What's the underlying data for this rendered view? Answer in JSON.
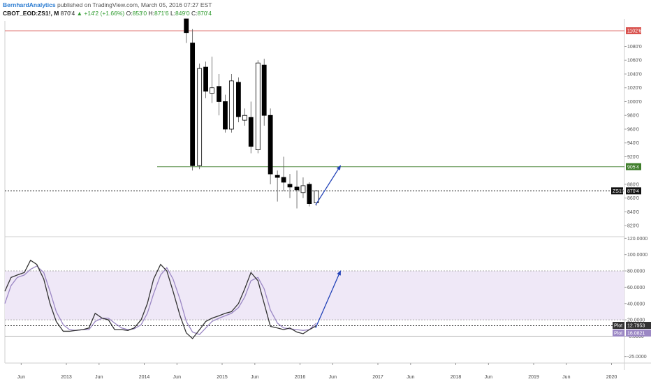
{
  "header": {
    "author": "BernhardAnalytics",
    "published": "published on TradingView.com, March 05, 2016 07:27 EST",
    "symbol": "CBOT_EOD:ZS1!, M",
    "last": "870'4",
    "change": "+14'2 (+1.66%)",
    "open_label": "O:",
    "open": "853'0",
    "high_label": "H:",
    "high": "871'6",
    "low_label": "L:",
    "low": "849'0",
    "close_label": "C:",
    "close": "870'4"
  },
  "chart_data": {
    "type": "candlestick",
    "price_axis": {
      "range": [
        804,
        1120
      ],
      "ticks": [
        "1080'0",
        "1060'0",
        "1040'0",
        "1020'0",
        "1000'0",
        "980'0",
        "960'0",
        "940'0",
        "920'0",
        "880'0",
        "860'0",
        "840'0",
        "820'0"
      ],
      "tick_values": [
        1080,
        1060,
        1040,
        1020,
        1000,
        980,
        960,
        940,
        920,
        880,
        860,
        840,
        820
      ]
    },
    "time_axis": {
      "labels": [
        "Jun",
        "2013",
        "Jun",
        "2014",
        "Jun",
        "2015",
        "Jun",
        "2016",
        "Jun",
        "2017",
        "Jun",
        "2018",
        "Jun",
        "2019",
        "Jun",
        "2020"
      ],
      "label_times": [
        2012.42,
        2013.0,
        2013.42,
        2014.0,
        2014.42,
        2015.0,
        2015.42,
        2016.0,
        2016.42,
        2017.0,
        2017.42,
        2018.0,
        2018.42,
        2019.0,
        2019.42,
        2020.0
      ]
    },
    "candles": [
      {
        "t": 2014.54,
        "o": 1125,
        "h": 1125,
        "l": 1085,
        "c": 1100
      },
      {
        "t": 2014.62,
        "o": 1085,
        "h": 1105,
        "l": 900,
        "c": 907
      },
      {
        "t": 2014.71,
        "o": 907,
        "h": 1055,
        "l": 902,
        "c": 1048
      },
      {
        "t": 2014.79,
        "o": 1050,
        "h": 1058,
        "l": 1005,
        "c": 1015
      },
      {
        "t": 2014.87,
        "o": 1012,
        "h": 1065,
        "l": 998,
        "c": 1020
      },
      {
        "t": 2014.96,
        "o": 1022,
        "h": 1040,
        "l": 980,
        "c": 1000
      },
      {
        "t": 2015.04,
        "o": 1000,
        "h": 1010,
        "l": 955,
        "c": 960
      },
      {
        "t": 2015.12,
        "o": 960,
        "h": 1040,
        "l": 955,
        "c": 1030
      },
      {
        "t": 2015.21,
        "o": 1028,
        "h": 1035,
        "l": 970,
        "c": 978
      },
      {
        "t": 2015.29,
        "o": 973,
        "h": 990,
        "l": 965,
        "c": 980
      },
      {
        "t": 2015.37,
        "o": 977,
        "h": 1000,
        "l": 925,
        "c": 935
      },
      {
        "t": 2015.46,
        "o": 930,
        "h": 1060,
        "l": 925,
        "c": 1056
      },
      {
        "t": 2015.54,
        "o": 1053,
        "h": 1062,
        "l": 965,
        "c": 980
      },
      {
        "t": 2015.62,
        "o": 980,
        "h": 990,
        "l": 880,
        "c": 895
      },
      {
        "t": 2015.71,
        "o": 893,
        "h": 900,
        "l": 855,
        "c": 890
      },
      {
        "t": 2015.79,
        "o": 890,
        "h": 920,
        "l": 870,
        "c": 883
      },
      {
        "t": 2015.87,
        "o": 880,
        "h": 895,
        "l": 860,
        "c": 876
      },
      {
        "t": 2015.96,
        "o": 876,
        "h": 900,
        "l": 845,
        "c": 872
      },
      {
        "t": 2016.04,
        "o": 868,
        "h": 890,
        "l": 860,
        "c": 878
      },
      {
        "t": 2016.12,
        "o": 880,
        "h": 883,
        "l": 848,
        "c": 852
      },
      {
        "t": 2016.21,
        "o": 853,
        "h": 871.75,
        "l": 849,
        "c": 870.5
      }
    ],
    "levels": [
      {
        "price": 1102.75,
        "label": "1102'6",
        "color": "#d9534f"
      },
      {
        "price": 905.5,
        "label": "905'4",
        "color": "#3e7d2a"
      }
    ],
    "last_price": {
      "price": 870.5,
      "symbol": "ZS1!",
      "label": "870'4"
    },
    "projection": {
      "from": {
        "t": 2016.2,
        "price": 850
      },
      "to": {
        "t": 2016.52,
        "price": 907
      }
    },
    "oscillator": {
      "range": [
        -33,
        122
      ],
      "ticks": [
        "120.0000",
        "100.0000",
        "80.0000",
        "60.0000",
        "40.0000",
        "20.0000",
        "-0.0000",
        "-25.0000"
      ],
      "tick_values": [
        120,
        100,
        80,
        60,
        40,
        20,
        0,
        -25
      ],
      "upper_band": 80,
      "lower_band": 20,
      "band_fill": "#efe8f7",
      "x": [
        2012.21,
        2012.29,
        2012.37,
        2012.46,
        2012.54,
        2012.62,
        2012.71,
        2012.79,
        2012.87,
        2012.96,
        2013.04,
        2013.12,
        2013.21,
        2013.29,
        2013.37,
        2013.46,
        2013.54,
        2013.62,
        2013.71,
        2013.79,
        2013.87,
        2013.96,
        2014.04,
        2014.12,
        2014.21,
        2014.29,
        2014.37,
        2014.46,
        2014.54,
        2014.62,
        2014.71,
        2014.79,
        2014.87,
        2014.96,
        2015.04,
        2015.12,
        2015.21,
        2015.29,
        2015.37,
        2015.46,
        2015.54,
        2015.62,
        2015.71,
        2015.79,
        2015.87,
        2015.96,
        2016.04,
        2016.12,
        2016.21
      ],
      "series": [
        {
          "name": "Plot",
          "color": "#333333",
          "label": "12.7953",
          "values": [
            55,
            72,
            75,
            78,
            93,
            88,
            70,
            40,
            18,
            6,
            6,
            7,
            8,
            10,
            28,
            22,
            20,
            8,
            8,
            7,
            10,
            20,
            40,
            70,
            88,
            80,
            55,
            25,
            4,
            -3,
            8,
            18,
            22,
            25,
            28,
            30,
            40,
            58,
            78,
            68,
            40,
            12,
            10,
            8,
            10,
            5,
            3,
            8,
            12.8
          ]
        },
        {
          "name": "Plot",
          "color": "#9b87c4",
          "label": "16.0821",
          "values": [
            40,
            62,
            72,
            75,
            82,
            86,
            78,
            55,
            30,
            14,
            8,
            7,
            8,
            8,
            18,
            22,
            22,
            16,
            10,
            8,
            9,
            14,
            28,
            52,
            75,
            84,
            70,
            45,
            18,
            5,
            2,
            10,
            18,
            22,
            25,
            28,
            35,
            48,
            68,
            72,
            58,
            32,
            16,
            10,
            9,
            8,
            7,
            8,
            16.1
          ]
        }
      ],
      "projection": {
        "from": {
          "t": 2016.2,
          "value": 10
        },
        "to": {
          "t": 2016.52,
          "value": 80
        }
      }
    }
  }
}
